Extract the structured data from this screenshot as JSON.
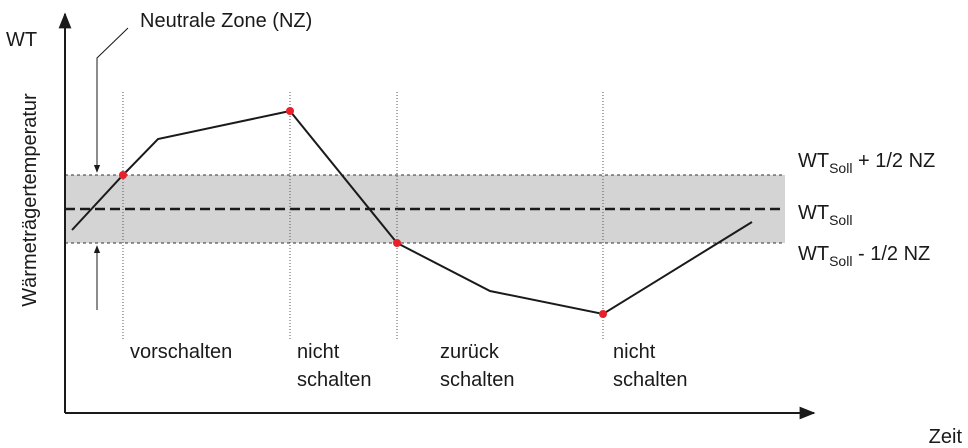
{
  "axes": {
    "y_label": "WT",
    "y_title": "Wärmeträgertemperatur",
    "x_label": "Zeit"
  },
  "annotation": "Neutrale Zone (NZ)",
  "band_labels": [
    {
      "base": "WT",
      "sub": "Soll",
      "suffix": " + 1/2 NZ"
    },
    {
      "base": "WT",
      "sub": "Soll"
    },
    {
      "base": "WT",
      "sub": "Soll",
      "suffix": " - 1/2 NZ"
    }
  ],
  "regions": [
    {
      "lines": [
        "vorschalten"
      ]
    },
    {
      "lines": [
        "nicht",
        "schalten"
      ]
    },
    {
      "lines": [
        "zurück",
        "schalten"
      ]
    },
    {
      "lines": [
        "nicht",
        "schalten"
      ]
    }
  ]
}
